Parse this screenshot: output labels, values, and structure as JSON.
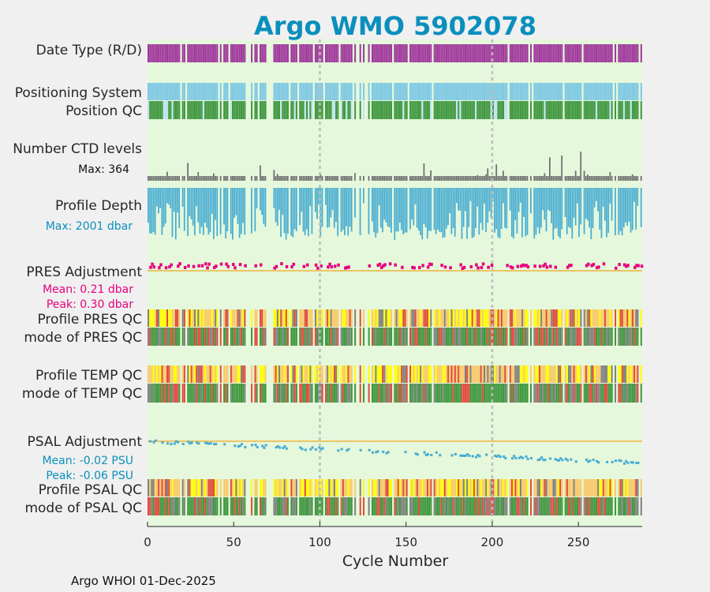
{
  "title": "Argo WMO 5902078",
  "footer": "Argo WHOI 01-Dec-2025",
  "chart_data": {
    "type": "heatmap",
    "xlabel": "Cycle Number",
    "xlim": [
      0,
      287
    ],
    "xticks": [
      "0",
      "50",
      "100",
      "150",
      "200",
      "250"
    ],
    "xtick_values": [
      0,
      50,
      100,
      150,
      200,
      250
    ],
    "dashed_guides_at_cycle": [
      100,
      200
    ],
    "colors": {
      "delayed": "#a0389c",
      "positioning": "#7ec8e3",
      "position_qc_good": "#3f973f",
      "position_qc_other": "#bfe3f0",
      "ctd_levels": "#6e6e6e",
      "depth": "#47acd1",
      "pres_adjustment": "#e6007e",
      "psal_adjustment": "#47acd1",
      "zero_line": "#f0b23e",
      "qc_a": "#ffff00",
      "qc_b": "#f9c96a",
      "qc_c": "#e24a3b",
      "qc_d": "#808080",
      "mode_good": "#3f973f",
      "panel_bg": "#e5f8dc"
    },
    "rows": [
      {
        "key": "datetype",
        "label": "Date Type (R/D)"
      },
      {
        "key": "positioning",
        "label": "Positioning System"
      },
      {
        "key": "position_qc",
        "label": "Position QC"
      },
      {
        "key": "ctd_levels",
        "label": "Number CTD levels",
        "note": "Max: 364"
      },
      {
        "key": "profile_depth",
        "label": "Profile Depth",
        "note": "Max: 2001 dbar"
      },
      {
        "key": "pres_adjustment",
        "label": "PRES Adjustment",
        "mean": "Mean: 0.21 dbar",
        "peak": "Peak: 0.30 dbar"
      },
      {
        "key": "profile_pres_qc",
        "label": "Profile PRES QC"
      },
      {
        "key": "mode_pres_qc",
        "label": "mode of PRES QC"
      },
      {
        "key": "profile_temp_qc",
        "label": "Profile TEMP QC"
      },
      {
        "key": "mode_temp_qc",
        "label": "mode of TEMP QC"
      },
      {
        "key": "psal_adjustment",
        "label": "PSAL Adjustment",
        "mean": "Mean: -0.02 PSU",
        "peak": "Peak: -0.06 PSU"
      },
      {
        "key": "profile_psal_qc",
        "label": "Profile PSAL QC"
      },
      {
        "key": "mode_psal_qc",
        "label": "mode of PSAL QC"
      }
    ],
    "ctd_levels_max": 364,
    "profile_depth_max_dbar": 2001,
    "pres_adjustment_mean_dbar": 0.21,
    "pres_adjustment_peak_dbar": 0.3,
    "psal_adjustment_mean_psu": -0.02,
    "psal_adjustment_peak_psu": -0.06
  }
}
